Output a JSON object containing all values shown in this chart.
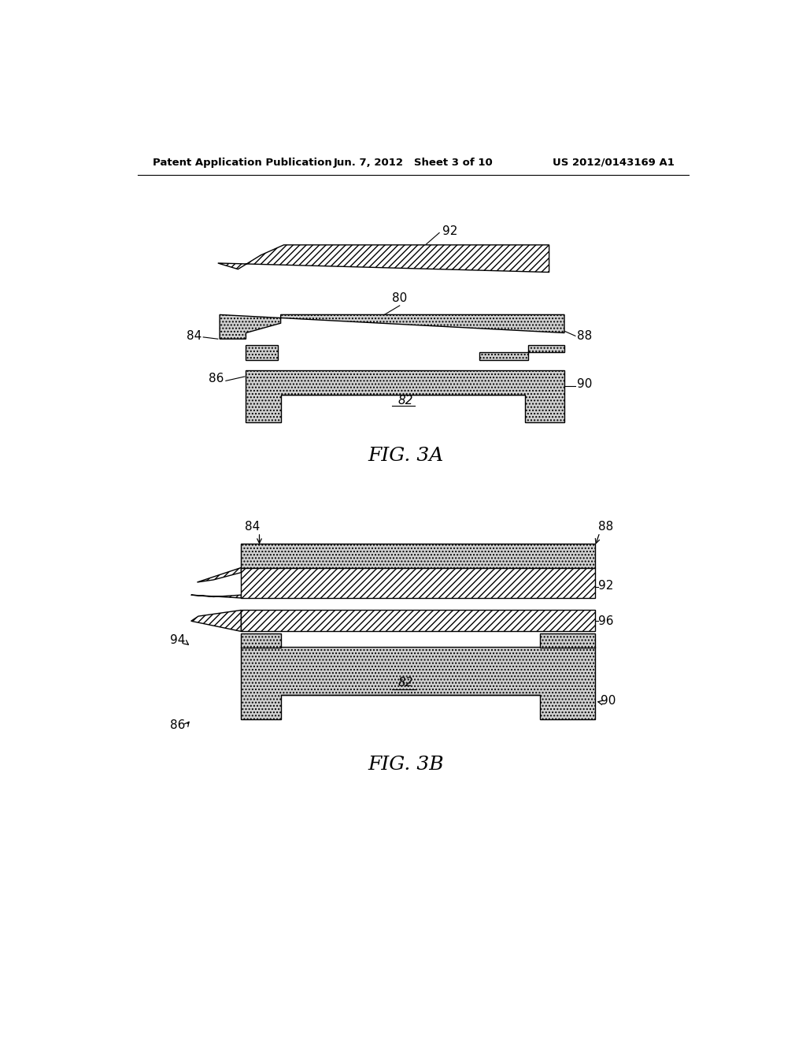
{
  "bg_color": "#ffffff",
  "header_left": "Patent Application Publication",
  "header_center": "Jun. 7, 2012   Sheet 3 of 10",
  "header_right": "US 2012/0143169 A1",
  "fig3a_label": "FIG. 3A",
  "fig3b_label": "FIG. 3B",
  "dot_fill": "#d0d0d0",
  "hatch_fill": "#ffffff",
  "black": "#000000",
  "lw": 1.0
}
